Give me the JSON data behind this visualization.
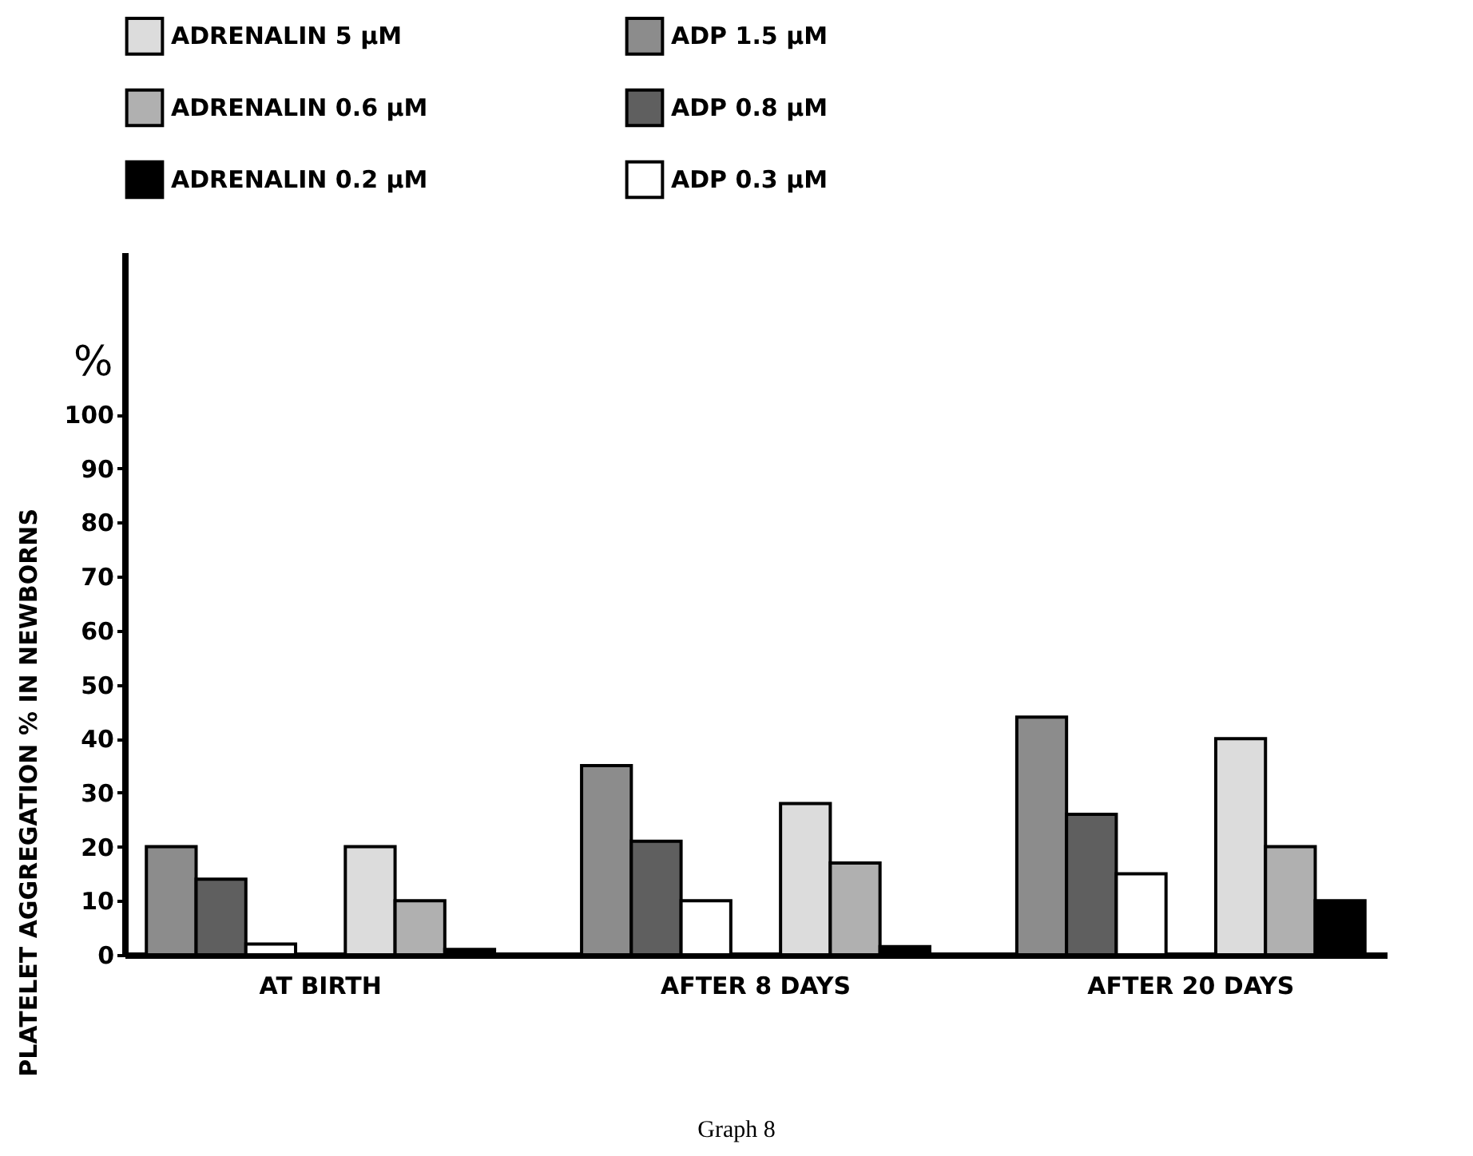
{
  "chart_data": {
    "type": "bar",
    "ylabel": "PLATELET AGGREGATION % IN NEWBORNS",
    "categories": [
      "AT BIRTH",
      "AFTER 8 DAYS",
      "AFTER 20 DAYS"
    ],
    "series": [
      {
        "name": "ADP 1.5 μM",
        "color": "#8c8c8c",
        "values": [
          20,
          35,
          44
        ]
      },
      {
        "name": "ADP 0.8 μM",
        "color": "#5f5f5f",
        "values": [
          14,
          21,
          26
        ]
      },
      {
        "name": "ADP 0.3 μM",
        "color": "#ffffff",
        "values": [
          2,
          10,
          15
        ]
      },
      {
        "name": "ADRENALIN 5 μM",
        "color": "#dcdcdc",
        "values": [
          20,
          28,
          40
        ]
      },
      {
        "name": "ADRENALIN 0.6 μM",
        "color": "#b0b0b0",
        "values": [
          10,
          17,
          20
        ]
      },
      {
        "name": "ADRENALIN 0.2 μM",
        "color": "#000000",
        "values": [
          1,
          1.5,
          10
        ]
      }
    ],
    "ylim": [
      0,
      130
    ],
    "yticks": [
      0,
      10,
      20,
      30,
      40,
      50,
      60,
      70,
      80,
      90,
      100
    ],
    "grid": false,
    "legend": "top",
    "annotations": [
      "%",
      "Graph 8"
    ]
  }
}
